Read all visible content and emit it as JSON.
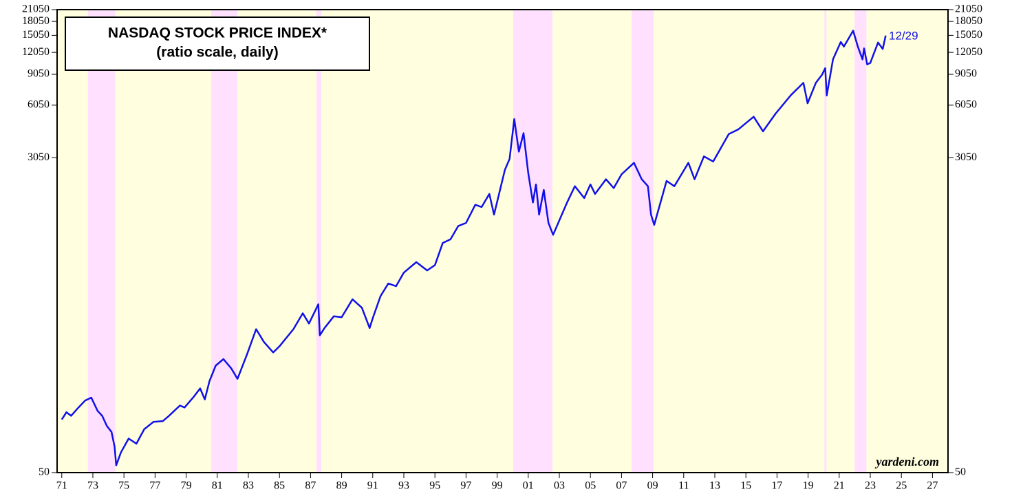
{
  "chart_data": {
    "type": "line",
    "title": "NASDAQ STOCK PRICE INDEX*",
    "subtitle": "(ratio scale, daily)",
    "annotations": [
      "12/29",
      "yardeni.com"
    ],
    "log_scale": true,
    "background_color": "#ffffe0",
    "shade_color": "#ffe0ff",
    "shaded_periods": [
      [
        1972.68,
        1974.45
      ],
      [
        1980.61,
        1982.29
      ],
      [
        1987.38,
        1987.69
      ],
      [
        2000.04,
        2002.56
      ],
      [
        2007.65,
        2009.07
      ],
      [
        2020.05,
        2020.18
      ],
      [
        2021.99,
        2022.75
      ]
    ],
    "xlim": [
      1970.7,
      2028.0
    ],
    "xticks": [
      {
        "value": 1971,
        "label": "71"
      },
      {
        "value": 1973,
        "label": "73"
      },
      {
        "value": 1975,
        "label": "75"
      },
      {
        "value": 1977,
        "label": "77"
      },
      {
        "value": 1979,
        "label": "79"
      },
      {
        "value": 1981,
        "label": "81"
      },
      {
        "value": 1983,
        "label": "83"
      },
      {
        "value": 1985,
        "label": "85"
      },
      {
        "value": 1987,
        "label": "87"
      },
      {
        "value": 1989,
        "label": "89"
      },
      {
        "value": 1991,
        "label": "91"
      },
      {
        "value": 1993,
        "label": "93"
      },
      {
        "value": 1995,
        "label": "95"
      },
      {
        "value": 1997,
        "label": "97"
      },
      {
        "value": 1999,
        "label": "99"
      },
      {
        "value": 2001,
        "label": "01"
      },
      {
        "value": 2003,
        "label": "03"
      },
      {
        "value": 2005,
        "label": "05"
      },
      {
        "value": 2007,
        "label": "07"
      },
      {
        "value": 2009,
        "label": "09"
      },
      {
        "value": 2011,
        "label": "11"
      },
      {
        "value": 2013,
        "label": "13"
      },
      {
        "value": 2015,
        "label": "15"
      },
      {
        "value": 2017,
        "label": "17"
      },
      {
        "value": 2019,
        "label": "19"
      },
      {
        "value": 2021,
        "label": "21"
      },
      {
        "value": 2023,
        "label": "23"
      },
      {
        "value": 2025,
        "label": "25"
      },
      {
        "value": 2027,
        "label": "27"
      }
    ],
    "ylim": [
      50,
      21050
    ],
    "yticks": [
      50,
      3050,
      6050,
      9050,
      12050,
      15050,
      18050,
      21050
    ],
    "x": [
      1971.0,
      1971.3,
      1971.6,
      1972.0,
      1972.5,
      1972.9,
      1973.3,
      1973.6,
      1973.9,
      1974.2,
      1974.4,
      1974.5,
      1974.8,
      1975.3,
      1975.8,
      1976.3,
      1976.9,
      1977.5,
      1977.9,
      1978.6,
      1978.9,
      1979.5,
      1979.9,
      1980.2,
      1980.5,
      1980.9,
      1981.4,
      1981.9,
      1982.3,
      1982.9,
      1983.5,
      1984.0,
      1984.6,
      1985.0,
      1985.9,
      1986.5,
      1986.9,
      1987.5,
      1987.6,
      1987.9,
      1988.5,
      1989.0,
      1989.7,
      1990.3,
      1990.8,
      1991.0,
      1991.5,
      1992.0,
      1992.5,
      1993.0,
      1993.8,
      1994.5,
      1995.0,
      1995.5,
      1996.0,
      1996.5,
      1997.0,
      1997.6,
      1998.0,
      1998.5,
      1998.8,
      1999.5,
      1999.8,
      2000.1,
      2000.4,
      2000.7,
      2001.0,
      2001.3,
      2001.5,
      2001.7,
      2002.0,
      2002.3,
      2002.6,
      2003.5,
      2004.0,
      2004.6,
      2005.0,
      2005.3,
      2006.0,
      2006.5,
      2007.0,
      2007.8,
      2008.3,
      2008.7,
      2008.9,
      2009.1,
      2009.9,
      2010.4,
      2011.3,
      2011.7,
      2012.3,
      2012.9,
      2013.9,
      2014.5,
      2015.5,
      2016.1,
      2016.9,
      2017.9,
      2018.7,
      2018.97,
      2019.5,
      2019.9,
      2020.1,
      2020.2,
      2020.6,
      2021.1,
      2021.3,
      2021.9,
      2022.2,
      2022.5,
      2022.6,
      2022.8,
      2023.0,
      2023.5,
      2023.8,
      2023.99
    ],
    "series": [
      {
        "name": "NASDAQ",
        "color": "#1010e8",
        "values": [
          100,
          110,
          105,
          115,
          128,
          133,
          112,
          105,
          92,
          85,
          70,
          55,
          65,
          78,
          73,
          88,
          97,
          98,
          105,
          120,
          117,
          135,
          150,
          130,
          165,
          202,
          220,
          195,
          170,
          232,
          325,
          275,
          240,
          260,
          325,
          400,
          350,
          450,
          300,
          330,
          385,
          380,
          480,
          430,
          330,
          375,
          500,
          590,
          570,
          680,
          780,
          700,
          750,
          1000,
          1050,
          1250,
          1300,
          1650,
          1600,
          1900,
          1450,
          2600,
          3000,
          5048,
          3300,
          4200,
          2500,
          1700,
          2150,
          1450,
          2000,
          1300,
          1114,
          1700,
          2100,
          1800,
          2150,
          1900,
          2300,
          2050,
          2450,
          2850,
          2300,
          2100,
          1450,
          1268,
          2250,
          2100,
          2850,
          2300,
          3100,
          2900,
          4150,
          4400,
          5200,
          4300,
          5400,
          6900,
          8100,
          6200,
          8100,
          9000,
          9800,
          6860,
          11000,
          13800,
          13000,
          16000,
          13000,
          11000,
          12700,
          10300,
          10500,
          13700,
          12600,
          15011
        ]
      }
    ]
  }
}
